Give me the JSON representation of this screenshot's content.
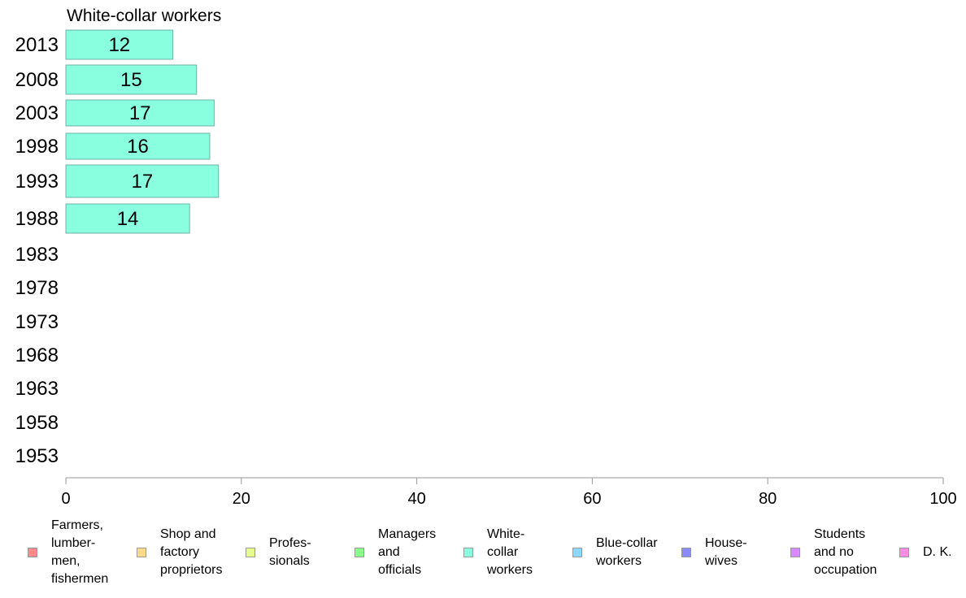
{
  "chart_data": {
    "type": "bar",
    "orientation": "horizontal",
    "title": "White-collar workers",
    "categories": [
      "2013",
      "2008",
      "2003",
      "1998",
      "1993",
      "1988",
      "1983",
      "1978",
      "1973",
      "1968",
      "1963",
      "1958",
      "1953"
    ],
    "series": [
      {
        "name": "White-collar workers",
        "color": "#8affe0",
        "values": [
          12.2,
          14.9,
          16.9,
          16.4,
          17.4,
          14.1,
          null,
          null,
          null,
          null,
          null,
          null,
          null
        ],
        "labels": [
          "12",
          "15",
          "17",
          "16",
          "17",
          "14",
          "",
          "",
          "",
          "",
          "",
          "",
          ""
        ]
      }
    ],
    "xlim": [
      0,
      100
    ],
    "xticks": [
      "0",
      "20",
      "40",
      "60",
      "80",
      "100"
    ],
    "xlabel": "",
    "ylabel": "",
    "grid": false,
    "legend_position": "bottom"
  },
  "legend": [
    {
      "label": "Farmers,\nlumber-\nmen,\nfishermen",
      "color": "#ff8a8a"
    },
    {
      "label": "Shop and\nfactory\nproprietors",
      "color": "#ffd98a"
    },
    {
      "label": "Profes-\nsionals",
      "color": "#e6ff8a"
    },
    {
      "label": "Managers\nand\nofficials",
      "color": "#8aff8a"
    },
    {
      "label": "White-\ncollar\nworkers",
      "color": "#8affe0"
    },
    {
      "label": "Blue-collar\nworkers",
      "color": "#8ad9ff"
    },
    {
      "label": "House-\nwives",
      "color": "#8a8aff"
    },
    {
      "label": "Students\nand no\noccupation",
      "color": "#d98aff"
    },
    {
      "label": "D. K.",
      "color": "#ff8ae0"
    }
  ]
}
